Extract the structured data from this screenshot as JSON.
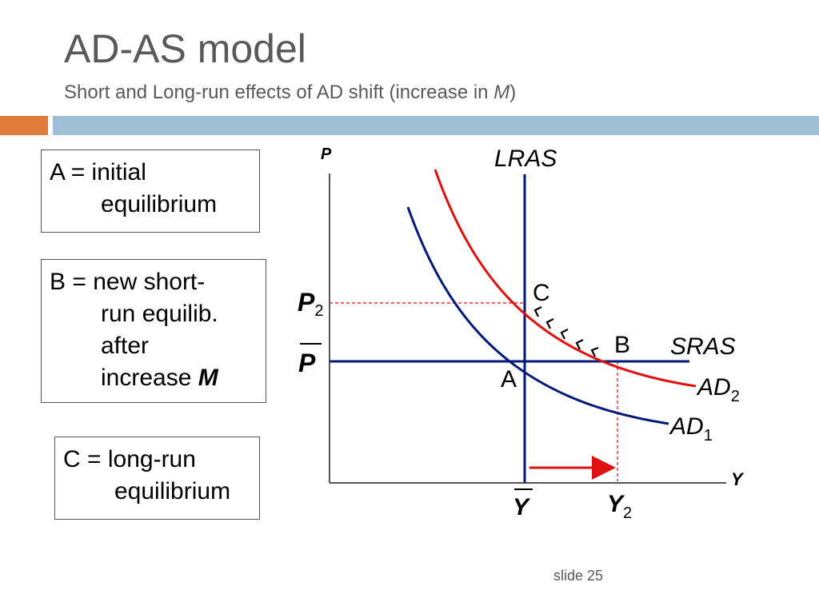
{
  "slide": {
    "title": "AD-AS model",
    "subtitle_prefix": "Short and Long-run effects of AD shift (increase in ",
    "subtitle_var": "M",
    "subtitle_suffix": ")",
    "slide_number": "slide 25"
  },
  "legend_boxes": {
    "a": {
      "lines": [
        "A = initial",
        "equilibrium"
      ]
    },
    "b": {
      "lines": [
        "B = new short-",
        "run equilib.",
        "after",
        "increase "
      ],
      "var": "M"
    },
    "c": {
      "lines": [
        "C = long-run",
        "equilibrium"
      ]
    }
  },
  "diagram": {
    "axis_x_label": "Y",
    "axis_y_label": "P",
    "curves": {
      "lras": "LRAS",
      "sras": "SRAS",
      "ad1": "AD",
      "ad1_sub": "1",
      "ad2": "AD",
      "ad2_sub": "2"
    },
    "points": {
      "a": "A",
      "b": "B",
      "c": "C"
    },
    "price_labels": {
      "p2": "P",
      "p2_sub": "2",
      "pbar": "P"
    },
    "output_labels": {
      "ybar": "Y",
      "y2": "Y",
      "y2_sub": "2"
    },
    "colors": {
      "ad1": "#001a7a",
      "ad2": "#e01010",
      "lras": "#001a7a",
      "sras": "#001a7a",
      "guide": "#e01010",
      "shift_arrow": "#e01010",
      "chevron": "#000000"
    }
  }
}
